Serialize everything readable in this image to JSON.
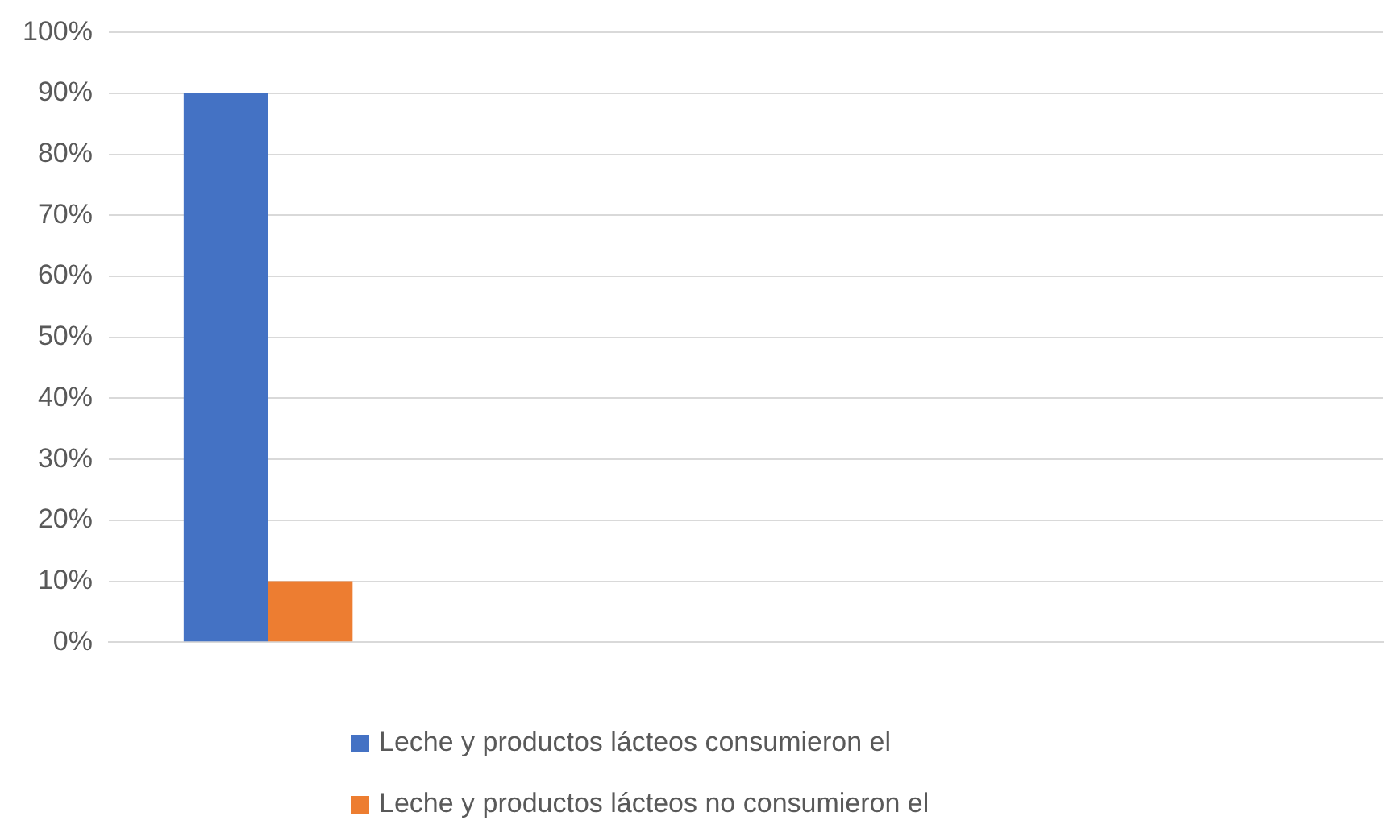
{
  "chart_data": {
    "type": "bar",
    "categories": [
      null,
      null,
      null,
      null
    ],
    "series": [
      {
        "name": "Leche y productos lácteos consumieron el",
        "color": "#4472c4",
        "values": [
          90,
          null,
          null,
          null
        ]
      },
      {
        "name": "Leche y productos lácteos no consumieron el",
        "color": "#ed7d31",
        "values": [
          10,
          null,
          null,
          null
        ]
      }
    ],
    "ylim": [
      0,
      100
    ],
    "yticks": [
      {
        "value": 0,
        "label": "0%"
      },
      {
        "value": 10,
        "label": "10%"
      },
      {
        "value": 20,
        "label": "20%"
      },
      {
        "value": 30,
        "label": "30%"
      },
      {
        "value": 40,
        "label": "40%"
      },
      {
        "value": 50,
        "label": "50%"
      },
      {
        "value": 60,
        "label": "60%"
      },
      {
        "value": 70,
        "label": "70%"
      },
      {
        "value": 80,
        "label": "80%"
      },
      {
        "value": 90,
        "label": "90%"
      },
      {
        "value": 100,
        "label": "100%"
      }
    ],
    "grid": "y",
    "legend": "bottom"
  }
}
